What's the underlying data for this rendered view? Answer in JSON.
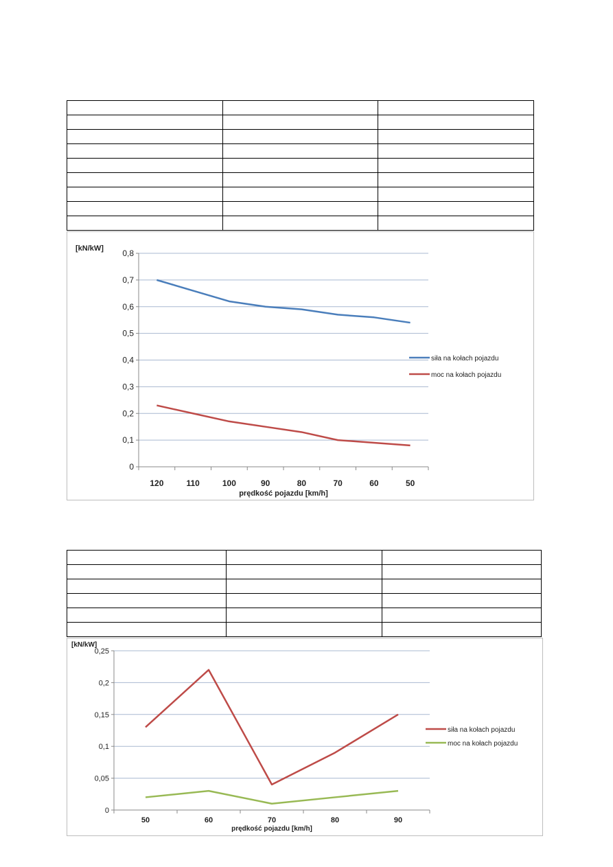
{
  "table1": {
    "rows": 9,
    "cols": 3
  },
  "table2": {
    "rows": 6,
    "cols": 3
  },
  "chart_data": [
    {
      "type": "line",
      "title": "",
      "ylabel": "[kN/kW]",
      "xlabel": "prędkość pojazdu [km/h]",
      "categories": [
        "120",
        "110",
        "100",
        "90",
        "80",
        "70",
        "60",
        "50"
      ],
      "ylim": [
        0,
        0.8
      ],
      "yticks": [
        0,
        0.1,
        0.2,
        0.3,
        0.4,
        0.5,
        0.6,
        0.7,
        0.8
      ],
      "ytick_labels": [
        "0",
        "0,1",
        "0,2",
        "0,3",
        "0,4",
        "0,5",
        "0,6",
        "0,7",
        "0,8"
      ],
      "grid": true,
      "legend": "right",
      "series": [
        {
          "name": "siła na kołach pojazdu",
          "color": "#4a7ebb",
          "values": [
            0.7,
            0.66,
            0.62,
            0.6,
            0.59,
            0.57,
            0.56,
            0.54
          ]
        },
        {
          "name": "moc na kołach pojazdu",
          "color": "#be4b48",
          "values": [
            0.23,
            0.2,
            0.17,
            0.15,
            0.13,
            0.1,
            0.09,
            0.08
          ]
        }
      ]
    },
    {
      "type": "line",
      "title": "",
      "ylabel": "[kN/kW]",
      "xlabel": "prędkość pojazdu [km/h]",
      "categories": [
        "50",
        "60",
        "70",
        "80",
        "90"
      ],
      "ylim": [
        0,
        0.25
      ],
      "yticks": [
        0,
        0.05,
        0.1,
        0.15,
        0.2,
        0.25
      ],
      "ytick_labels": [
        "0",
        "0,05",
        "0,1",
        "0,15",
        "0,2",
        "0,25"
      ],
      "grid": true,
      "legend": "right",
      "series": [
        {
          "name": "siła na kołach pojazdu",
          "color": "#be4b48",
          "values": [
            0.13,
            0.22,
            0.04,
            0.09,
            0.15
          ]
        },
        {
          "name": "moc na kołach pojazdu",
          "color": "#98b954",
          "values": [
            0.02,
            0.03,
            0.01,
            0.02,
            0.03
          ]
        }
      ]
    }
  ]
}
